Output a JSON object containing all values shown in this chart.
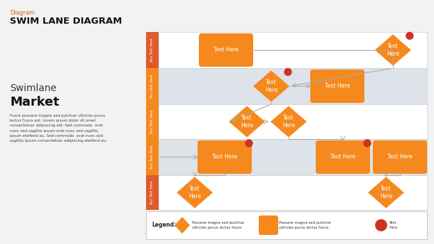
{
  "bg_color": "#f2f2f2",
  "title_label": "Diagram",
  "title_label_color": "#e05a2b",
  "title_main": "SWIM LANE DIAGRAM",
  "title_main_color": "#111111",
  "left_title_line1": "Swimlane",
  "left_title_line2": "Market",
  "left_body_text": "Fusce posuere magna sed pulvinar ultricies purus\nlectus Fusce est. Lorem ipsum dolor sit amet\nconsectetuer adipiscing elit. Sed commodo  erat\nnunc sed sagittis ipsum erat nunc sed sagittis\nipsum eleifend eu. Sed commodo  erat nunc sed\nsagittis ipsum consectetuer adipiscing eleifend eu.",
  "orange_main": "#f5891e",
  "orange_dark": "#e05a2b",
  "red_dot_color": "#cc3322",
  "conn_color": "#aaaaaa",
  "lane_colors": [
    "#ffffff",
    "#dde3e8",
    "#ffffff",
    "#dde3e8",
    "#ffffff"
  ],
  "lane_tab_colors": [
    "#e05a2b",
    "#f5891e",
    "#f5891e",
    "#f5891e",
    "#e05a2b"
  ]
}
